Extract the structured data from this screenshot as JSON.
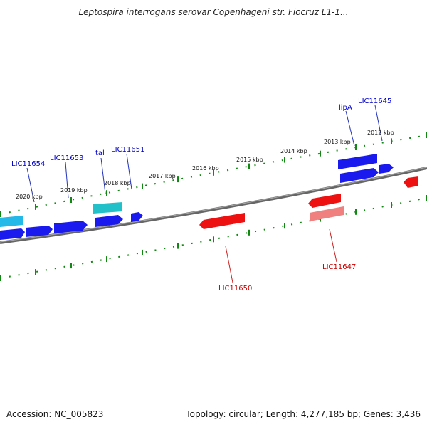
{
  "title": "Leptospira interrogans serovar Copenhageni str. Fiocruz L1-1...",
  "footer": {
    "accession": "Accession: NC_005823",
    "summary": "Topology: circular; Length: 4,277,185 bp; Genes: 3,436"
  },
  "colors": {
    "forward_gene": "#1a1aee",
    "forward_gene_light": "#22c8d8",
    "reverse_gene": "#ee1111",
    "reverse_gene_light": "#f08080",
    "backbone": "#777777",
    "ticks": "#118811",
    "forward_label": "#0000cc",
    "reverse_label": "#cc0000"
  },
  "scale": {
    "unit": "kbp",
    "ticks": [
      "2020 kbp",
      "2019 kbp",
      "2018 kbp",
      "2017 kbp",
      "2016 kbp",
      "2015 kbp",
      "2014 kbp",
      "2013 kbp",
      "2012 kbp"
    ]
  },
  "gene_labels": {
    "forward": [
      "LIC11654",
      "LIC11653",
      "tal",
      "LIC11651",
      "lipA",
      "LIC11645"
    ],
    "reverse": [
      "LIC11650",
      "LIC11647"
    ]
  }
}
